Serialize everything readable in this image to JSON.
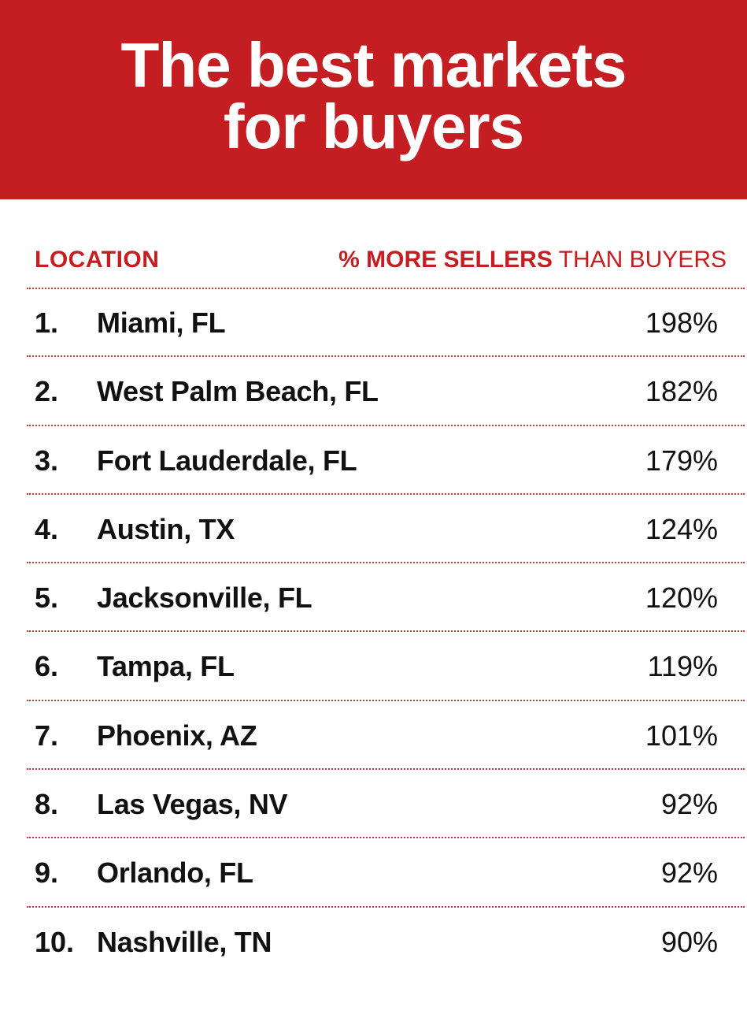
{
  "colors": {
    "accent": "#c41e22",
    "text": "#111111",
    "background": "#ffffff"
  },
  "chart_data": {
    "type": "table",
    "title": [
      "The best markets",
      "for buyers"
    ],
    "columns": {
      "location": "LOCATION",
      "metric_strong": "% MORE SELLERS",
      "metric_light": " THAN BUYERS"
    },
    "rows": [
      {
        "rank": "1.",
        "location": "Miami, FL",
        "value": "198%"
      },
      {
        "rank": "2.",
        "location": "West Palm Beach, FL",
        "value": "182%"
      },
      {
        "rank": "3.",
        "location": "Fort Lauderdale, FL",
        "value": "179%"
      },
      {
        "rank": "4.",
        "location": "Austin, TX",
        "value": "124%"
      },
      {
        "rank": "5.",
        "location": "Jacksonville, FL",
        "value": "120%"
      },
      {
        "rank": "6.",
        "location": "Tampa, FL",
        "value": "119%"
      },
      {
        "rank": "7.",
        "location": "Phoenix, AZ",
        "value": "101%"
      },
      {
        "rank": "8.",
        "location": "Las Vegas, NV",
        "value": "92%"
      },
      {
        "rank": "9.",
        "location": "Orlando, FL",
        "value": "92%"
      },
      {
        "rank": "10.",
        "location": "Nashville, TN",
        "value": "90%"
      }
    ]
  }
}
